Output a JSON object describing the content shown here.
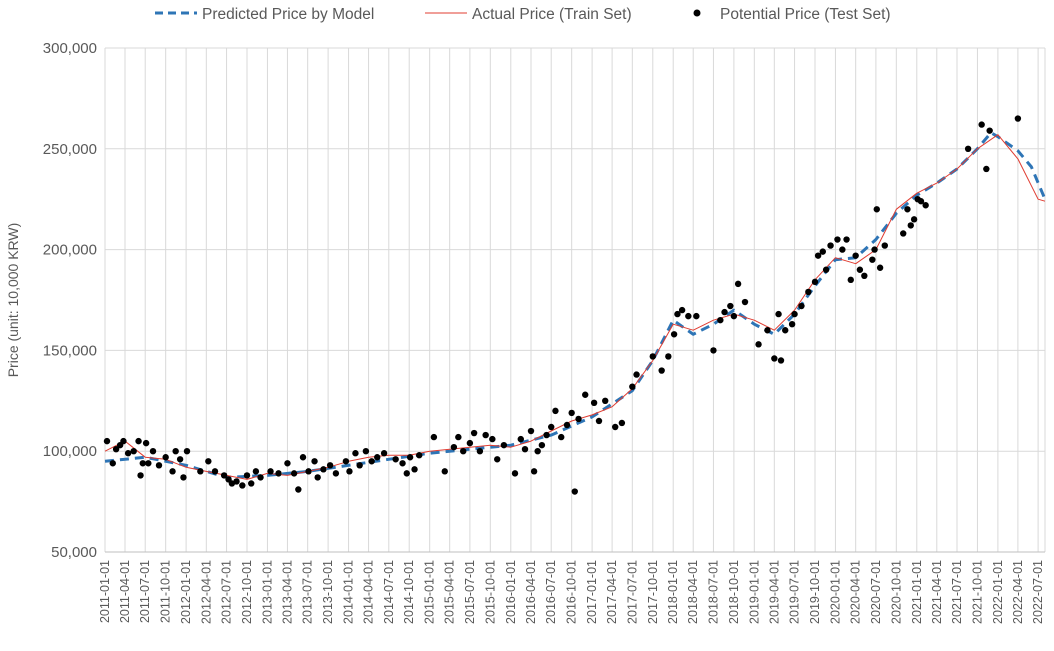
{
  "chart_data": {
    "type": "line",
    "ylabel": "Price (unit: 10,000 KRW)",
    "xlabel": "",
    "ylim": [
      50000,
      300000
    ],
    "xlim": [
      "2011-01-01",
      "2022-08-01"
    ],
    "y_ticks": [
      "50,000",
      "100,000",
      "150,000",
      "200,000",
      "250,000",
      "300,000"
    ],
    "x_tick_labels": [
      "2011-01-01",
      "2011-04-01",
      "2011-07-01",
      "2011-10-01",
      "2012-01-01",
      "2012-04-01",
      "2012-07-01",
      "2012-10-01",
      "2013-01-01",
      "2013-04-01",
      "2013-07-01",
      "2013-10-01",
      "2014-01-01",
      "2014-04-01",
      "2014-07-01",
      "2014-10-01",
      "2015-01-01",
      "2015-04-01",
      "2015-07-01",
      "2015-10-01",
      "2016-01-01",
      "2016-04-01",
      "2016-07-01",
      "2016-10-01",
      "2017-01-01",
      "2017-04-01",
      "2017-07-01",
      "2017-10-01",
      "2018-01-01",
      "2018-04-01",
      "2018-07-01",
      "2018-10-01",
      "2019-01-01",
      "2019-04-01",
      "2019-07-01",
      "2019-10-01",
      "2020-01-01",
      "2020-04-01",
      "2020-07-01",
      "2020-10-01",
      "2021-01-01",
      "2021-04-01",
      "2021-07-01",
      "2021-10-01",
      "2022-01-01",
      "2022-04-01",
      "2022-07-01"
    ],
    "grid": {
      "vertical": true,
      "horizontal": true
    },
    "legend_position": "top",
    "series": [
      {
        "name": "Predicted Price by Model",
        "style": "dashed",
        "color": "#2E75B6",
        "points": [
          [
            "2011-01-01",
            95000
          ],
          [
            "2011-07-01",
            97000
          ],
          [
            "2012-01-01",
            93000
          ],
          [
            "2012-07-01",
            87000
          ],
          [
            "2013-01-01",
            88000
          ],
          [
            "2013-07-01",
            90000
          ],
          [
            "2014-01-01",
            93000
          ],
          [
            "2014-07-01",
            96000
          ],
          [
            "2015-01-01",
            99000
          ],
          [
            "2015-07-01",
            101000
          ],
          [
            "2016-01-01",
            103000
          ],
          [
            "2016-07-01",
            108000
          ],
          [
            "2017-01-01",
            117000
          ],
          [
            "2017-07-01",
            130000
          ],
          [
            "2017-10-01",
            145000
          ],
          [
            "2018-01-01",
            165000
          ],
          [
            "2018-04-01",
            158000
          ],
          [
            "2018-07-01",
            163000
          ],
          [
            "2018-10-01",
            170000
          ],
          [
            "2019-01-01",
            163000
          ],
          [
            "2019-04-01",
            158000
          ],
          [
            "2019-07-01",
            168000
          ],
          [
            "2019-10-01",
            182000
          ],
          [
            "2020-01-01",
            195000
          ],
          [
            "2020-04-01",
            196000
          ],
          [
            "2020-07-01",
            205000
          ],
          [
            "2020-10-01",
            218000
          ],
          [
            "2021-01-01",
            227000
          ],
          [
            "2021-04-01",
            233000
          ],
          [
            "2021-07-01",
            240000
          ],
          [
            "2021-10-01",
            250000
          ],
          [
            "2021-12-01",
            258000
          ],
          [
            "2022-01-01",
            256000
          ],
          [
            "2022-04-01",
            249000
          ],
          [
            "2022-06-01",
            241000
          ],
          [
            "2022-08-01",
            225000
          ]
        ]
      },
      {
        "name": "Actual Price (Train Set)",
        "style": "solid",
        "color": "#E03C31",
        "points": [
          [
            "2011-01-01",
            100000
          ],
          [
            "2011-04-01",
            105000
          ],
          [
            "2011-07-01",
            97000
          ],
          [
            "2011-10-01",
            96000
          ],
          [
            "2012-01-01",
            92000
          ],
          [
            "2012-04-01",
            90000
          ],
          [
            "2012-07-01",
            88000
          ],
          [
            "2012-10-01",
            86000
          ],
          [
            "2013-01-01",
            89000
          ],
          [
            "2013-04-01",
            88000
          ],
          [
            "2013-07-01",
            90000
          ],
          [
            "2013-10-01",
            92000
          ],
          [
            "2014-01-01",
            95000
          ],
          [
            "2014-04-01",
            97000
          ],
          [
            "2014-07-01",
            98000
          ],
          [
            "2014-10-01",
            98000
          ],
          [
            "2015-01-01",
            100000
          ],
          [
            "2015-04-01",
            101000
          ],
          [
            "2015-07-01",
            102000
          ],
          [
            "2015-10-01",
            103000
          ],
          [
            "2016-01-01",
            102000
          ],
          [
            "2016-04-01",
            105000
          ],
          [
            "2016-07-01",
            110000
          ],
          [
            "2016-10-01",
            115000
          ],
          [
            "2017-01-01",
            118000
          ],
          [
            "2017-04-01",
            122000
          ],
          [
            "2017-07-01",
            131000
          ],
          [
            "2017-10-01",
            145000
          ],
          [
            "2018-01-01",
            163000
          ],
          [
            "2018-04-01",
            160000
          ],
          [
            "2018-07-01",
            165000
          ],
          [
            "2018-10-01",
            168000
          ],
          [
            "2019-01-01",
            165000
          ],
          [
            "2019-04-01",
            160000
          ],
          [
            "2019-07-01",
            170000
          ],
          [
            "2019-10-01",
            185000
          ],
          [
            "2020-01-01",
            196000
          ],
          [
            "2020-04-01",
            193000
          ],
          [
            "2020-07-01",
            200000
          ],
          [
            "2020-10-01",
            220000
          ],
          [
            "2021-01-01",
            228000
          ],
          [
            "2021-04-01",
            233000
          ],
          [
            "2021-07-01",
            240000
          ],
          [
            "2021-10-01",
            250000
          ],
          [
            "2022-01-01",
            257000
          ],
          [
            "2022-04-01",
            245000
          ],
          [
            "2022-07-01",
            225000
          ],
          [
            "2022-08-01",
            224000
          ]
        ]
      },
      {
        "name": "Potential Price (Test Set)",
        "style": "marker",
        "color": "#000000",
        "points": [
          [
            "2011-01-10",
            105000
          ],
          [
            "2011-02-05",
            94000
          ],
          [
            "2011-02-20",
            101000
          ],
          [
            "2011-03-10",
            103000
          ],
          [
            "2011-03-25",
            105000
          ],
          [
            "2011-04-15",
            99000
          ],
          [
            "2011-05-10",
            100000
          ],
          [
            "2011-06-01",
            105000
          ],
          [
            "2011-06-10",
            88000
          ],
          [
            "2011-06-20",
            94000
          ],
          [
            "2011-07-05",
            104000
          ],
          [
            "2011-07-15",
            94000
          ],
          [
            "2011-08-05",
            100000
          ],
          [
            "2011-09-01",
            93000
          ],
          [
            "2011-10-01",
            97000
          ],
          [
            "2011-11-01",
            90000
          ],
          [
            "2011-11-15",
            100000
          ],
          [
            "2011-12-05",
            96000
          ],
          [
            "2011-12-20",
            87000
          ],
          [
            "2012-01-05",
            100000
          ],
          [
            "2012-03-05",
            90000
          ],
          [
            "2012-04-10",
            95000
          ],
          [
            "2012-05-10",
            90000
          ],
          [
            "2012-06-20",
            88000
          ],
          [
            "2012-07-10",
            86000
          ],
          [
            "2012-07-25",
            84000
          ],
          [
            "2012-08-15",
            85000
          ],
          [
            "2012-09-10",
            83000
          ],
          [
            "2012-10-01",
            88000
          ],
          [
            "2012-10-20",
            84000
          ],
          [
            "2012-11-10",
            90000
          ],
          [
            "2012-12-01",
            87000
          ],
          [
            "2013-01-15",
            90000
          ],
          [
            "2013-02-20",
            89000
          ],
          [
            "2013-04-01",
            94000
          ],
          [
            "2013-05-01",
            89000
          ],
          [
            "2013-05-20",
            81000
          ],
          [
            "2013-06-10",
            97000
          ],
          [
            "2013-07-05",
            90000
          ],
          [
            "2013-08-01",
            95000
          ],
          [
            "2013-08-15",
            87000
          ],
          [
            "2013-09-10",
            91000
          ],
          [
            "2013-10-10",
            93000
          ],
          [
            "2013-11-05",
            89000
          ],
          [
            "2013-12-20",
            95000
          ],
          [
            "2014-01-05",
            90000
          ],
          [
            "2014-02-01",
            99000
          ],
          [
            "2014-02-20",
            93000
          ],
          [
            "2014-03-20",
            100000
          ],
          [
            "2014-04-15",
            95000
          ],
          [
            "2014-05-10",
            97000
          ],
          [
            "2014-06-10",
            99000
          ],
          [
            "2014-08-01",
            96000
          ],
          [
            "2014-09-01",
            94000
          ],
          [
            "2014-09-20",
            89000
          ],
          [
            "2014-10-05",
            97000
          ],
          [
            "2014-10-25",
            91000
          ],
          [
            "2014-11-15",
            98000
          ],
          [
            "2015-01-20",
            107000
          ],
          [
            "2015-03-10",
            90000
          ],
          [
            "2015-04-20",
            102000
          ],
          [
            "2015-05-10",
            107000
          ],
          [
            "2015-06-01",
            100000
          ],
          [
            "2015-07-01",
            104000
          ],
          [
            "2015-07-20",
            109000
          ],
          [
            "2015-08-15",
            100000
          ],
          [
            "2015-09-10",
            108000
          ],
          [
            "2015-10-10",
            106000
          ],
          [
            "2015-11-01",
            96000
          ],
          [
            "2015-12-01",
            103000
          ],
          [
            "2016-01-20",
            89000
          ],
          [
            "2016-02-15",
            106000
          ],
          [
            "2016-03-05",
            101000
          ],
          [
            "2016-04-01",
            110000
          ],
          [
            "2016-04-15",
            90000
          ],
          [
            "2016-05-01",
            100000
          ],
          [
            "2016-05-20",
            103000
          ],
          [
            "2016-06-10",
            108000
          ],
          [
            "2016-07-01",
            112000
          ],
          [
            "2016-07-20",
            120000
          ],
          [
            "2016-08-15",
            107000
          ],
          [
            "2016-09-10",
            113000
          ],
          [
            "2016-10-01",
            119000
          ],
          [
            "2016-10-15",
            80000
          ],
          [
            "2016-11-01",
            116000
          ],
          [
            "2016-12-01",
            128000
          ],
          [
            "2017-01-10",
            124000
          ],
          [
            "2017-02-01",
            115000
          ],
          [
            "2017-03-01",
            125000
          ],
          [
            "2017-04-15",
            112000
          ],
          [
            "2017-05-15",
            114000
          ],
          [
            "2017-07-01",
            132000
          ],
          [
            "2017-07-20",
            138000
          ],
          [
            "2017-10-01",
            147000
          ],
          [
            "2017-11-10",
            140000
          ],
          [
            "2017-12-10",
            147000
          ],
          [
            "2018-01-05",
            158000
          ],
          [
            "2018-01-20",
            168000
          ],
          [
            "2018-02-10",
            170000
          ],
          [
            "2018-03-10",
            167000
          ],
          [
            "2018-04-15",
            167000
          ],
          [
            "2018-07-01",
            150000
          ],
          [
            "2018-08-01",
            165000
          ],
          [
            "2018-08-20",
            169000
          ],
          [
            "2018-09-15",
            172000
          ],
          [
            "2018-10-01",
            167000
          ],
          [
            "2018-10-20",
            183000
          ],
          [
            "2018-11-20",
            174000
          ],
          [
            "2019-01-20",
            153000
          ],
          [
            "2019-03-01",
            160000
          ],
          [
            "2019-04-01",
            146000
          ],
          [
            "2019-04-20",
            168000
          ],
          [
            "2019-05-01",
            145000
          ],
          [
            "2019-05-20",
            160000
          ],
          [
            "2019-06-20",
            163000
          ],
          [
            "2019-07-01",
            168000
          ],
          [
            "2019-08-01",
            172000
          ],
          [
            "2019-09-01",
            179000
          ],
          [
            "2019-10-01",
            184000
          ],
          [
            "2019-10-15",
            197000
          ],
          [
            "2019-11-05",
            199000
          ],
          [
            "2019-11-20",
            190000
          ],
          [
            "2019-12-10",
            202000
          ],
          [
            "2020-01-10",
            205000
          ],
          [
            "2020-02-01",
            200000
          ],
          [
            "2020-02-20",
            205000
          ],
          [
            "2020-03-10",
            185000
          ],
          [
            "2020-04-01",
            197000
          ],
          [
            "2020-04-20",
            190000
          ],
          [
            "2020-05-10",
            187000
          ],
          [
            "2020-06-15",
            195000
          ],
          [
            "2020-06-25",
            200000
          ],
          [
            "2020-07-05",
            220000
          ],
          [
            "2020-07-20",
            191000
          ],
          [
            "2020-08-10",
            202000
          ],
          [
            "2020-11-01",
            208000
          ],
          [
            "2020-11-20",
            220000
          ],
          [
            "2020-12-05",
            212000
          ],
          [
            "2020-12-20",
            215000
          ],
          [
            "2021-01-05",
            225000
          ],
          [
            "2021-01-20",
            224000
          ],
          [
            "2021-02-10",
            222000
          ],
          [
            "2021-08-20",
            250000
          ],
          [
            "2021-10-20",
            262000
          ],
          [
            "2021-11-10",
            240000
          ],
          [
            "2021-11-25",
            259000
          ],
          [
            "2022-04-01",
            265000
          ]
        ]
      }
    ]
  }
}
